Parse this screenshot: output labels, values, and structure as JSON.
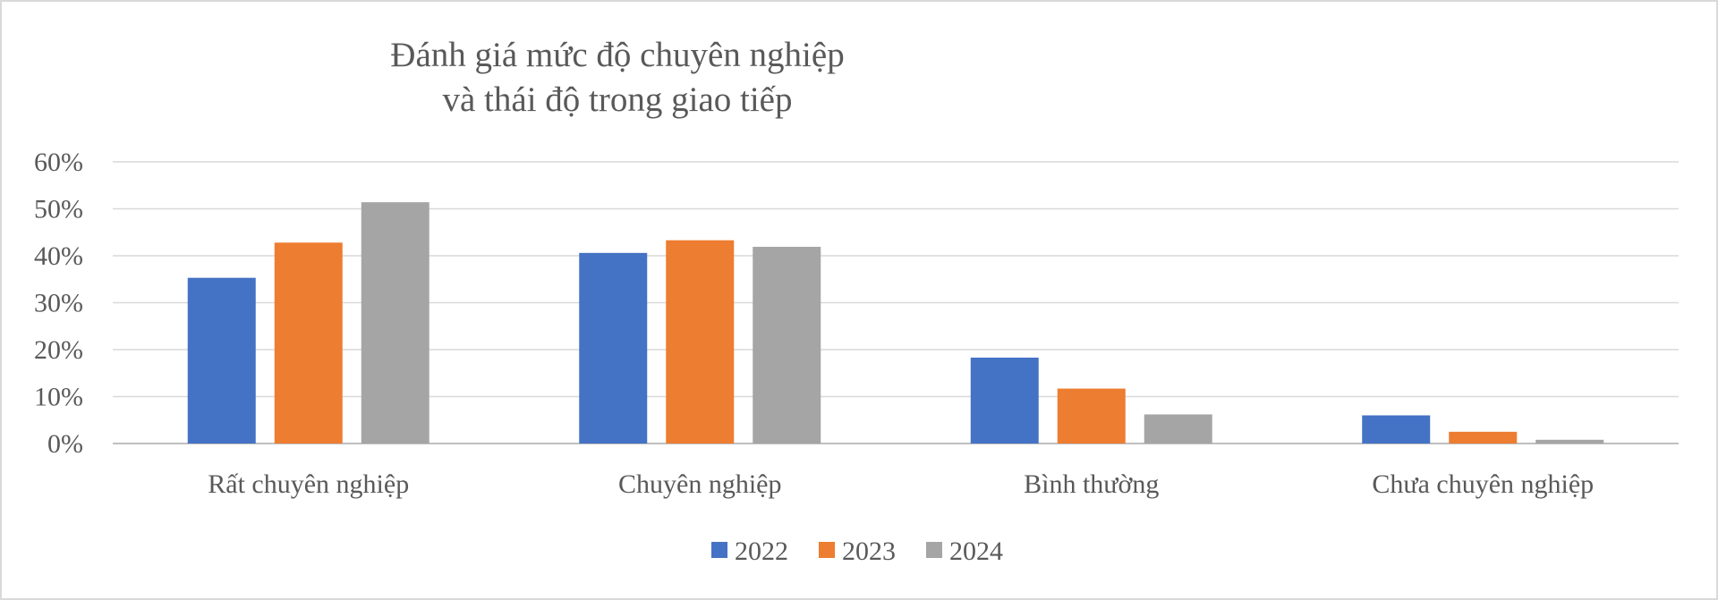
{
  "chart_data": {
    "type": "bar",
    "title_lines": [
      "Đánh giá mức độ chuyên nghiệp",
      "và thái độ trong giao tiếp"
    ],
    "xlabel": "",
    "ylabel": "",
    "categories": [
      "Rất chuyên nghiệp",
      "Chuyên nghiệp",
      "Bình thường",
      "Chưa chuyên nghiệp"
    ],
    "series": [
      {
        "name": "2022",
        "color": "#4472C4",
        "values": [
          35.3,
          40.6,
          18.3,
          6.0
        ]
      },
      {
        "name": "2023",
        "color": "#ED7D31",
        "values": [
          42.8,
          43.3,
          11.7,
          2.5
        ]
      },
      {
        "name": "2024",
        "color": "#A5A5A5",
        "values": [
          51.4,
          41.9,
          6.2,
          0.8
        ]
      }
    ],
    "ylim": [
      0,
      60
    ],
    "yticks": [
      0,
      10,
      20,
      30,
      40,
      50,
      60
    ],
    "ytick_labels": [
      "0%",
      "10%",
      "20%",
      "30%",
      "40%",
      "50%",
      "60%"
    ],
    "grid": true,
    "legend_position": "bottom"
  }
}
